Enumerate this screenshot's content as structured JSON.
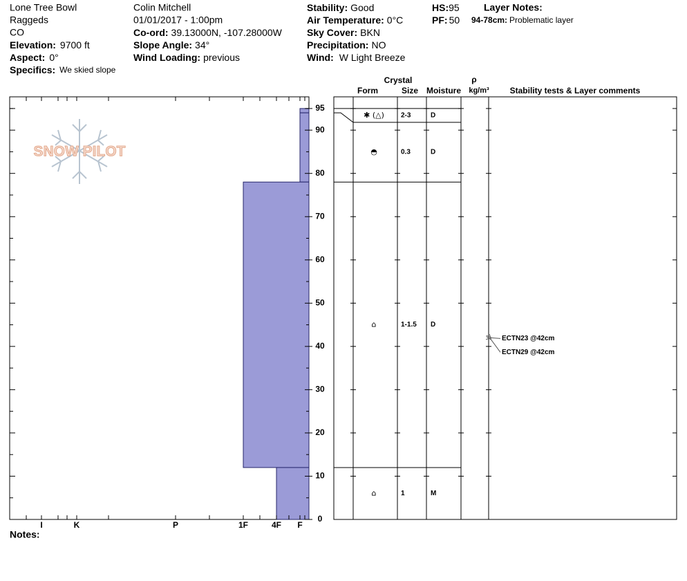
{
  "header": {
    "location": "Lone Tree Bowl",
    "range": "Raggeds",
    "state": "CO",
    "elevation": {
      "label": "Elevation:",
      "value": "9700 ft"
    },
    "aspect": {
      "label": "Aspect:",
      "value": "0°"
    },
    "specifics": {
      "label": "Specifics:",
      "value": "We skied slope"
    },
    "observer": "Colin Mitchell",
    "datetime": "01/01/2017 - 1:00pm",
    "coord": {
      "label": "Co-ord:",
      "value": "39.13000N, -107.28000W"
    },
    "slope_angle": {
      "label": "Slope Angle:",
      "value": "34°"
    },
    "wind_loading": {
      "label": "Wind Loading:",
      "value": "previous"
    },
    "stability": {
      "label": "Stability:",
      "value": "Good"
    },
    "air_temperature": {
      "label": "Air Temperature:",
      "value": "0°C"
    },
    "sky_cover": {
      "label": "Sky Cover:",
      "value": "BKN"
    },
    "precipitation": {
      "label": "Precipitation:",
      "value": "NO"
    },
    "wind": {
      "label": "Wind:",
      "value": "W Light Breeze"
    },
    "hs": {
      "label": "HS:",
      "value": 95
    },
    "pf": {
      "label": "PF:",
      "value": 50
    },
    "layer_notes": {
      "label": "Layer Notes:",
      "items": [
        {
          "range": "94-78cm:",
          "note": "Problematic layer"
        }
      ]
    }
  },
  "logo": "SNOW PILOT",
  "profile": {
    "depth_lim": [
      0,
      97.7
    ],
    "depth_ticks": [
      0,
      10,
      20,
      30,
      40,
      50,
      60,
      70,
      80,
      90,
      95
    ],
    "hardness_scale": [
      "I",
      "K",
      "P",
      "1F",
      "4F",
      "F"
    ],
    "columns": {
      "crystal": "Crystal",
      "form": "Form",
      "size": "Size",
      "moisture": "Moisture",
      "density_symbol": "ρ",
      "density_unit": "kg/m³",
      "comments": "Stability tests & Layer comments"
    },
    "layers": [
      {
        "top": 95,
        "bottom": 94,
        "hardness": "F",
        "form": "✱ (△)",
        "size": "2-3",
        "moisture": "D"
      },
      {
        "top": 94,
        "bottom": 78,
        "hardness": "F",
        "form": "◓",
        "size": "0.3",
        "moisture": "D"
      },
      {
        "top": 78,
        "bottom": 12,
        "hardness": "1F",
        "form": "⌂",
        "size": "1-1.5",
        "moisture": "D"
      },
      {
        "top": 12,
        "bottom": 0,
        "hardness": "4F",
        "form": "⌂",
        "size": "1",
        "moisture": "M"
      }
    ],
    "tests": [
      {
        "label": "ECTN23 @42cm",
        "depth": 42
      },
      {
        "label": "ECTN29 @42cm",
        "depth": 42
      }
    ]
  },
  "notes": {
    "label": "Notes:"
  }
}
